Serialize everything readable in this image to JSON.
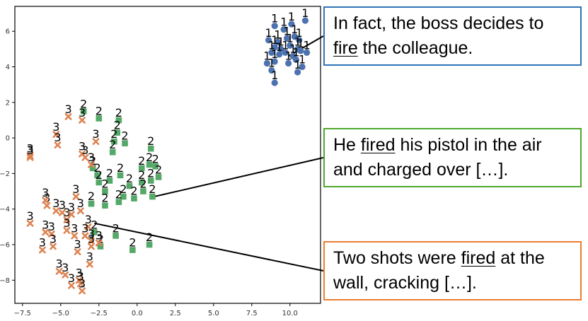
{
  "chart_data": {
    "type": "scatter",
    "xlim": [
      -8,
      12
    ],
    "ylim": [
      -9.3,
      7.4
    ],
    "x_ticks": [
      -7.5,
      -5.0,
      -2.5,
      0.0,
      2.5,
      5.0,
      7.5,
      10.0
    ],
    "x_tick_labels": [
      "−7.5",
      "−5.0",
      "−2.5",
      "0.0",
      "2.5",
      "5.0",
      "7.5",
      "10.0"
    ],
    "y_ticks": [
      -8,
      -6,
      -4,
      -2,
      0,
      2,
      4,
      6
    ],
    "y_tick_labels": [
      "−8",
      "−6",
      "−4",
      "−2",
      "0",
      "2",
      "4",
      "6"
    ],
    "grid": false,
    "series": [
      {
        "label": "1",
        "marker": "circle",
        "color": "#4c72b0",
        "points": [
          [
            9.0,
            6.3
          ],
          [
            9.6,
            6.1
          ],
          [
            10.1,
            6.4
          ],
          [
            11.0,
            6.6
          ],
          [
            8.6,
            5.5
          ],
          [
            9.2,
            5.4
          ],
          [
            9.8,
            5.6
          ],
          [
            10.3,
            5.7
          ],
          [
            10.6,
            5.5
          ],
          [
            9.0,
            5.1
          ],
          [
            9.4,
            5.0
          ],
          [
            10.0,
            5.2
          ],
          [
            10.5,
            5.0
          ],
          [
            11.1,
            4.8
          ],
          [
            8.8,
            4.8
          ],
          [
            9.3,
            4.7
          ],
          [
            9.7,
            4.8
          ],
          [
            10.2,
            4.6
          ],
          [
            10.7,
            4.9
          ],
          [
            8.5,
            4.2
          ],
          [
            9.0,
            4.3
          ],
          [
            9.9,
            4.2
          ],
          [
            10.4,
            4.4
          ],
          [
            10.8,
            4.0
          ],
          [
            8.8,
            3.8
          ],
          [
            10.5,
            3.7
          ],
          [
            9.0,
            3.1
          ]
        ]
      },
      {
        "label": "2",
        "marker": "square",
        "color": "#55a868",
        "points": [
          [
            -3.5,
            1.5
          ],
          [
            -2.5,
            1.1
          ],
          [
            -1.2,
            1.0
          ],
          [
            -1.3,
            0.3
          ],
          [
            -1.5,
            -0.2
          ],
          [
            -0.8,
            -0.3
          ],
          [
            0.9,
            -0.6
          ],
          [
            -1.6,
            -0.8
          ],
          [
            0.3,
            -1.7
          ],
          [
            0.8,
            -1.5
          ],
          [
            1.2,
            -1.6
          ],
          [
            -2.9,
            -1.7
          ],
          [
            -2.6,
            -2.1
          ],
          [
            -1.1,
            -2.1
          ],
          [
            -2.5,
            -2.5
          ],
          [
            -1.8,
            -2.4
          ],
          [
            -0.5,
            -2.7
          ],
          [
            0.3,
            -2.5
          ],
          [
            0.9,
            -2.4
          ],
          [
            1.4,
            -2.2
          ],
          [
            -2.1,
            -3.0
          ],
          [
            -0.9,
            -3.3
          ],
          [
            0.4,
            -3.0
          ],
          [
            1.0,
            -3.3
          ],
          [
            -3.0,
            -3.7
          ],
          [
            -2.1,
            -3.8
          ],
          [
            -1.2,
            -3.6
          ],
          [
            -0.2,
            -3.4
          ],
          [
            -2.8,
            -5.3
          ],
          [
            -1.4,
            -5.5
          ],
          [
            -2.4,
            -6.1
          ],
          [
            -0.3,
            -6.3
          ],
          [
            0.8,
            -6.0
          ]
        ]
      },
      {
        "label": "3",
        "marker": "x",
        "color": "#dd8452",
        "points": [
          [
            -4.5,
            1.2
          ],
          [
            -3.6,
            1.0
          ],
          [
            -5.3,
            0.2
          ],
          [
            -2.7,
            -0.2
          ],
          [
            -5.2,
            -0.4
          ],
          [
            -7.0,
            -1.0
          ],
          [
            -7.0,
            -1.1
          ],
          [
            -3.6,
            -0.9
          ],
          [
            -3.4,
            -1.1
          ],
          [
            -3.0,
            -1.5
          ],
          [
            -4.0,
            -3.3
          ],
          [
            -5.9,
            -3.8
          ],
          [
            -6.0,
            -3.5
          ],
          [
            -5.3,
            -4.1
          ],
          [
            -4.9,
            -4.2
          ],
          [
            -4.6,
            -4.6
          ],
          [
            -4.3,
            -4.3
          ],
          [
            -3.7,
            -4.1
          ],
          [
            -7.0,
            -4.8
          ],
          [
            -6.0,
            -5.3
          ],
          [
            -5.6,
            -5.4
          ],
          [
            -4.6,
            -5.2
          ],
          [
            -4.1,
            -5.5
          ],
          [
            -3.2,
            -5.0
          ],
          [
            -3.4,
            -5.5
          ],
          [
            -3.0,
            -5.8
          ],
          [
            -6.2,
            -6.3
          ],
          [
            -5.5,
            -6.1
          ],
          [
            -3.9,
            -6.4
          ],
          [
            -3.0,
            -6.1
          ],
          [
            -2.5,
            -5.9
          ],
          [
            -3.1,
            -7.1
          ],
          [
            -5.1,
            -7.5
          ],
          [
            -4.7,
            -7.7
          ],
          [
            -4.3,
            -8.3
          ],
          [
            -3.8,
            -8.0
          ],
          [
            -3.7,
            -8.2
          ],
          [
            -3.6,
            -8.6
          ]
        ]
      }
    ]
  },
  "callouts": [
    {
      "lines": [
        [
          {
            "text": "In fact, the boss decides to"
          }
        ],
        [
          {
            "text": "fire",
            "u": true
          },
          {
            "text": " the colleague."
          }
        ]
      ],
      "border_color": "#2e75b6",
      "anchor_point": [
        9.9,
        4.6
      ]
    },
    {
      "lines": [
        [
          {
            "text": "He "
          },
          {
            "text": "fired",
            "u": true
          },
          {
            "text": " his pistol in the air"
          }
        ],
        [
          {
            "text": "and charged over […]."
          }
        ]
      ],
      "border_color": "#4ea72e",
      "anchor_point": [
        1.1,
        -3.3
      ]
    },
    {
      "lines": [
        [
          {
            "text": "Two shots were "
          },
          {
            "text": "fired",
            "u": true
          },
          {
            "text": " at the"
          }
        ],
        [
          {
            "text": "wall, cracking […]."
          }
        ]
      ],
      "border_color": "#ed7d31",
      "anchor_point": [
        -2.8,
        -4.8
      ]
    }
  ]
}
